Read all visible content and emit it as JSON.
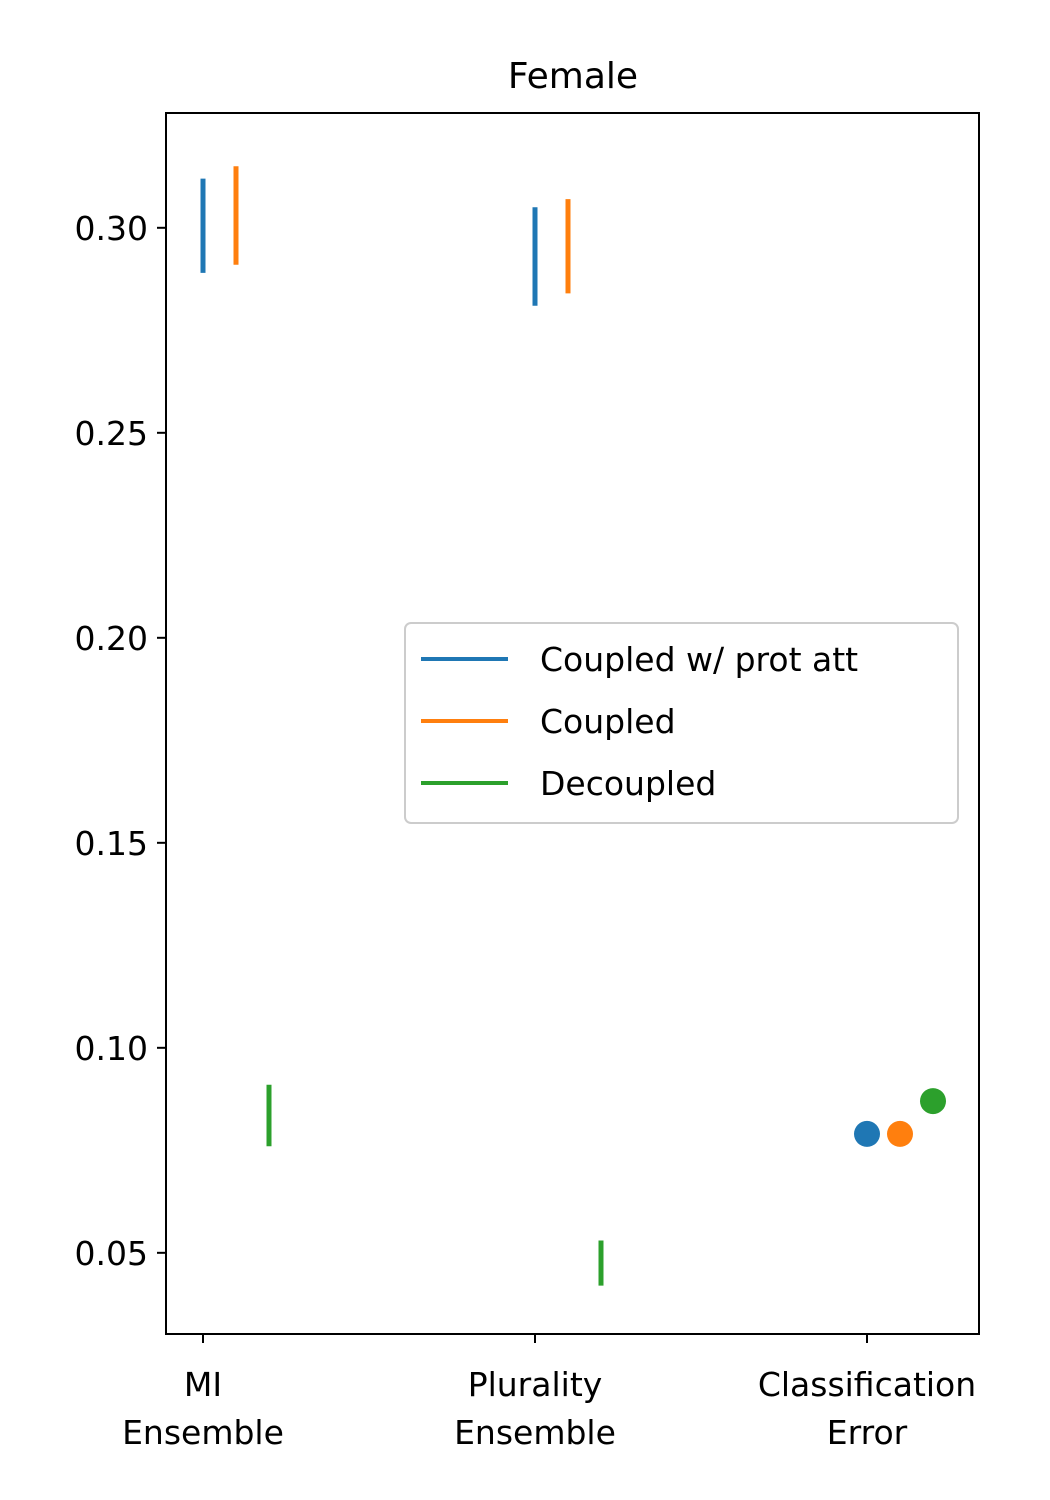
{
  "chart_data": {
    "type": "scatter",
    "title": "Female",
    "xlabel": "",
    "ylabel": "",
    "ylim": [
      0.0302,
      0.328
    ],
    "yticks": [
      {
        "value": 0.05,
        "label": "0.05"
      },
      {
        "value": 0.1,
        "label": "0.10"
      },
      {
        "value": 0.15,
        "label": "0.15"
      },
      {
        "value": 0.2,
        "label": "0.20"
      },
      {
        "value": 0.25,
        "label": "0.25"
      },
      {
        "value": 0.3,
        "label": "0.30"
      }
    ],
    "categories": [
      {
        "lines": [
          "MI",
          "Ensemble"
        ]
      },
      {
        "lines": [
          "Plurality",
          "Ensemble"
        ]
      },
      {
        "lines": [
          "Classification",
          "Error"
        ]
      }
    ],
    "grid": false,
    "legend_position": "center-right",
    "series": [
      {
        "name": "Coupled w/ prot att",
        "color": "#1f77b4",
        "ranges": [
          {
            "category": 0,
            "low": 0.289,
            "high": 0.312
          },
          {
            "category": 1,
            "low": 0.281,
            "high": 0.305
          }
        ],
        "points": [
          {
            "category": 2,
            "value": 0.079
          }
        ]
      },
      {
        "name": "Coupled",
        "color": "#ff7f0e",
        "ranges": [
          {
            "category": 0,
            "low": 0.291,
            "high": 0.315
          },
          {
            "category": 1,
            "low": 0.284,
            "high": 0.307
          }
        ],
        "points": [
          {
            "category": 2,
            "value": 0.079
          }
        ]
      },
      {
        "name": "Decoupled",
        "color": "#2ca02c",
        "ranges": [
          {
            "category": 0,
            "low": 0.076,
            "high": 0.091
          },
          {
            "category": 1,
            "low": 0.042,
            "high": 0.053
          }
        ],
        "points": [
          {
            "category": 2,
            "value": 0.087
          }
        ]
      }
    ]
  }
}
